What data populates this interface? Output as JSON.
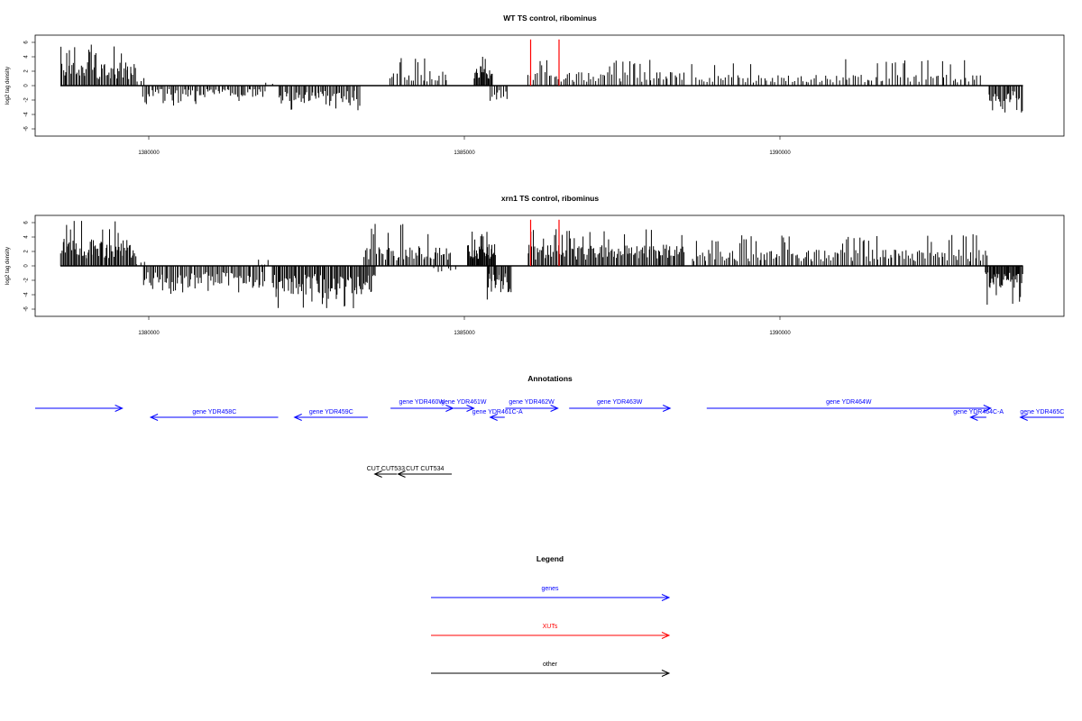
{
  "chart_data": [
    {
      "type": "bar",
      "title": "WT TS control, ribominus",
      "xlabel": "",
      "ylabel": "log2 tag density",
      "xlim": [
        1378200,
        1394500
      ],
      "ylim": [
        -7,
        7
      ],
      "yticks": [
        -6,
        -4,
        -2,
        0,
        2,
        4,
        6
      ],
      "xticks": [
        1380000,
        1385000,
        1390000
      ],
      "xtick_labels": [
        "1380000",
        "1385000",
        "1390000"
      ],
      "grid": false,
      "bars": [
        {
          "from": 1378600,
          "to": 1379800,
          "sign": 1,
          "max": 5.8,
          "base": 2.6,
          "n": 60,
          "seed": 1
        },
        {
          "from": 1379800,
          "to": 1379950,
          "sign": 1,
          "max": 3.0,
          "base": 1.2,
          "n": 3,
          "seed": 2
        },
        {
          "from": 1379900,
          "to": 1381850,
          "sign": -1,
          "max": 2.8,
          "base": 1.3,
          "n": 72,
          "seed": 3
        },
        {
          "from": 1381850,
          "to": 1382000,
          "sign": 1,
          "max": 1.0,
          "base": 0.4,
          "n": 2,
          "seed": 4
        },
        {
          "from": 1382050,
          "to": 1383350,
          "sign": -1,
          "max": 3.6,
          "base": 2.0,
          "n": 55,
          "seed": 5
        },
        {
          "from": 1383800,
          "to": 1384750,
          "sign": 1,
          "max": 4.2,
          "base": 1.6,
          "n": 25,
          "seed": 6
        },
        {
          "from": 1385150,
          "to": 1385450,
          "sign": 1,
          "max": 4.8,
          "base": 2.2,
          "n": 22,
          "seed": 7
        },
        {
          "from": 1385400,
          "to": 1385700,
          "sign": -1,
          "max": 4.6,
          "base": 1.8,
          "n": 10,
          "seed": 8
        },
        {
          "from": 1386000,
          "to": 1388500,
          "sign": 1,
          "max": 3.8,
          "base": 1.5,
          "n": 68,
          "seed": 9
        },
        {
          "from": 1388600,
          "to": 1393200,
          "sign": 1,
          "max": 3.8,
          "base": 1.2,
          "n": 105,
          "seed": 10
        },
        {
          "from": 1393300,
          "to": 1393850,
          "sign": -1,
          "max": 4.0,
          "base": 2.0,
          "n": 28,
          "seed": 11
        }
      ],
      "highlights": [
        {
          "x": 1386050,
          "color": "#ff0000"
        },
        {
          "x": 1386500,
          "color": "#ff0000"
        }
      ]
    },
    {
      "type": "bar",
      "title": "xrn1 TS control, ribominus",
      "xlabel": "",
      "ylabel": "log2 tag density",
      "xlim": [
        1378200,
        1394500
      ],
      "ylim": [
        -7,
        7
      ],
      "yticks": [
        -6,
        -4,
        -2,
        0,
        2,
        4,
        6
      ],
      "xticks": [
        1380000,
        1385000,
        1390000
      ],
      "xtick_labels": [
        "1380000",
        "1385000",
        "1390000"
      ],
      "grid": false,
      "bars": [
        {
          "from": 1378600,
          "to": 1379800,
          "sign": 1,
          "max": 6.4,
          "base": 3.0,
          "n": 70,
          "seed": 21
        },
        {
          "from": 1379800,
          "to": 1379950,
          "sign": 1,
          "max": 1.2,
          "base": 0.6,
          "n": 3,
          "seed": 22
        },
        {
          "from": 1379900,
          "to": 1381850,
          "sign": -1,
          "max": 4.0,
          "base": 2.4,
          "n": 80,
          "seed": 23
        },
        {
          "from": 1381700,
          "to": 1381950,
          "sign": 1,
          "max": 1.0,
          "base": 0.4,
          "n": 4,
          "seed": 24
        },
        {
          "from": 1381950,
          "to": 1383600,
          "sign": -1,
          "max": 6.0,
          "base": 3.2,
          "n": 90,
          "seed": 25
        },
        {
          "from": 1383400,
          "to": 1384800,
          "sign": 1,
          "max": 6.0,
          "base": 2.2,
          "n": 55,
          "seed": 26
        },
        {
          "from": 1384500,
          "to": 1384900,
          "sign": -1,
          "max": 2.0,
          "base": 0.8,
          "n": 6,
          "seed": 27
        },
        {
          "from": 1385050,
          "to": 1385500,
          "sign": 1,
          "max": 4.8,
          "base": 2.6,
          "n": 40,
          "seed": 28
        },
        {
          "from": 1385350,
          "to": 1385750,
          "sign": -1,
          "max": 6.0,
          "base": 3.0,
          "n": 24,
          "seed": 29
        },
        {
          "from": 1386000,
          "to": 1388500,
          "sign": 1,
          "max": 5.2,
          "base": 2.4,
          "n": 120,
          "seed": 30
        },
        {
          "from": 1388600,
          "to": 1393300,
          "sign": 1,
          "max": 4.4,
          "base": 1.8,
          "n": 150,
          "seed": 31
        },
        {
          "from": 1393250,
          "to": 1393850,
          "sign": -1,
          "max": 5.6,
          "base": 2.6,
          "n": 42,
          "seed": 32
        }
      ],
      "highlights": [
        {
          "x": 1386050,
          "color": "#ff0000"
        },
        {
          "x": 1386500,
          "color": "#ff0000"
        }
      ]
    }
  ],
  "annotations": {
    "title": "Annotations",
    "items": [
      {
        "label": "",
        "start": 1378150,
        "end": 1379580,
        "dir": "right",
        "row": 0,
        "color": "#0000ff"
      },
      {
        "label": "gene YDR458C",
        "start": 1380030,
        "end": 1382050,
        "dir": "left",
        "row": 1,
        "color": "#0000ff"
      },
      {
        "label": "gene YDR459C",
        "start": 1382310,
        "end": 1383470,
        "dir": "left",
        "row": 1,
        "color": "#0000ff"
      },
      {
        "label": "gene YDR460W",
        "start": 1383830,
        "end": 1384820,
        "dir": "right",
        "row": 0,
        "color": "#0000ff"
      },
      {
        "label": "gene YDR461W",
        "start": 1384830,
        "end": 1385150,
        "dir": "right",
        "row": 0,
        "color": "#0000ff"
      },
      {
        "label": "gene YDR461C-A",
        "start": 1385410,
        "end": 1385640,
        "dir": "left",
        "row": 1,
        "color": "#0000ff"
      },
      {
        "label": "gene YDR462W",
        "start": 1385650,
        "end": 1386480,
        "dir": "right",
        "row": 0,
        "color": "#0000ff"
      },
      {
        "label": "gene YDR463W",
        "start": 1386660,
        "end": 1388260,
        "dir": "right",
        "row": 0,
        "color": "#0000ff"
      },
      {
        "label": "gene YDR464W",
        "start": 1388840,
        "end": 1393340,
        "dir": "right",
        "row": 0,
        "color": "#0000ff"
      },
      {
        "label": "gene YDR464C-A",
        "start": 1393020,
        "end": 1393270,
        "dir": "left",
        "row": 1,
        "color": "#0000ff"
      },
      {
        "label": "gene YDR465C",
        "start": 1393810,
        "end": 1394900,
        "dir": "left",
        "row": 1,
        "color": "#0000ff"
      },
      {
        "label": "CUT CUT533",
        "start": 1383580,
        "end": 1383930,
        "dir": "left",
        "row": 2,
        "color": "#000000"
      },
      {
        "label": "CUT CUT534",
        "start": 1383950,
        "end": 1384800,
        "dir": "left",
        "row": 2,
        "color": "#000000"
      }
    ]
  },
  "legend": {
    "title": "Legend",
    "entries": [
      {
        "label": "genes",
        "color": "#0000ff"
      },
      {
        "label": "XUTs",
        "color": "#ff0000"
      },
      {
        "label": "other",
        "color": "#000000"
      }
    ]
  }
}
